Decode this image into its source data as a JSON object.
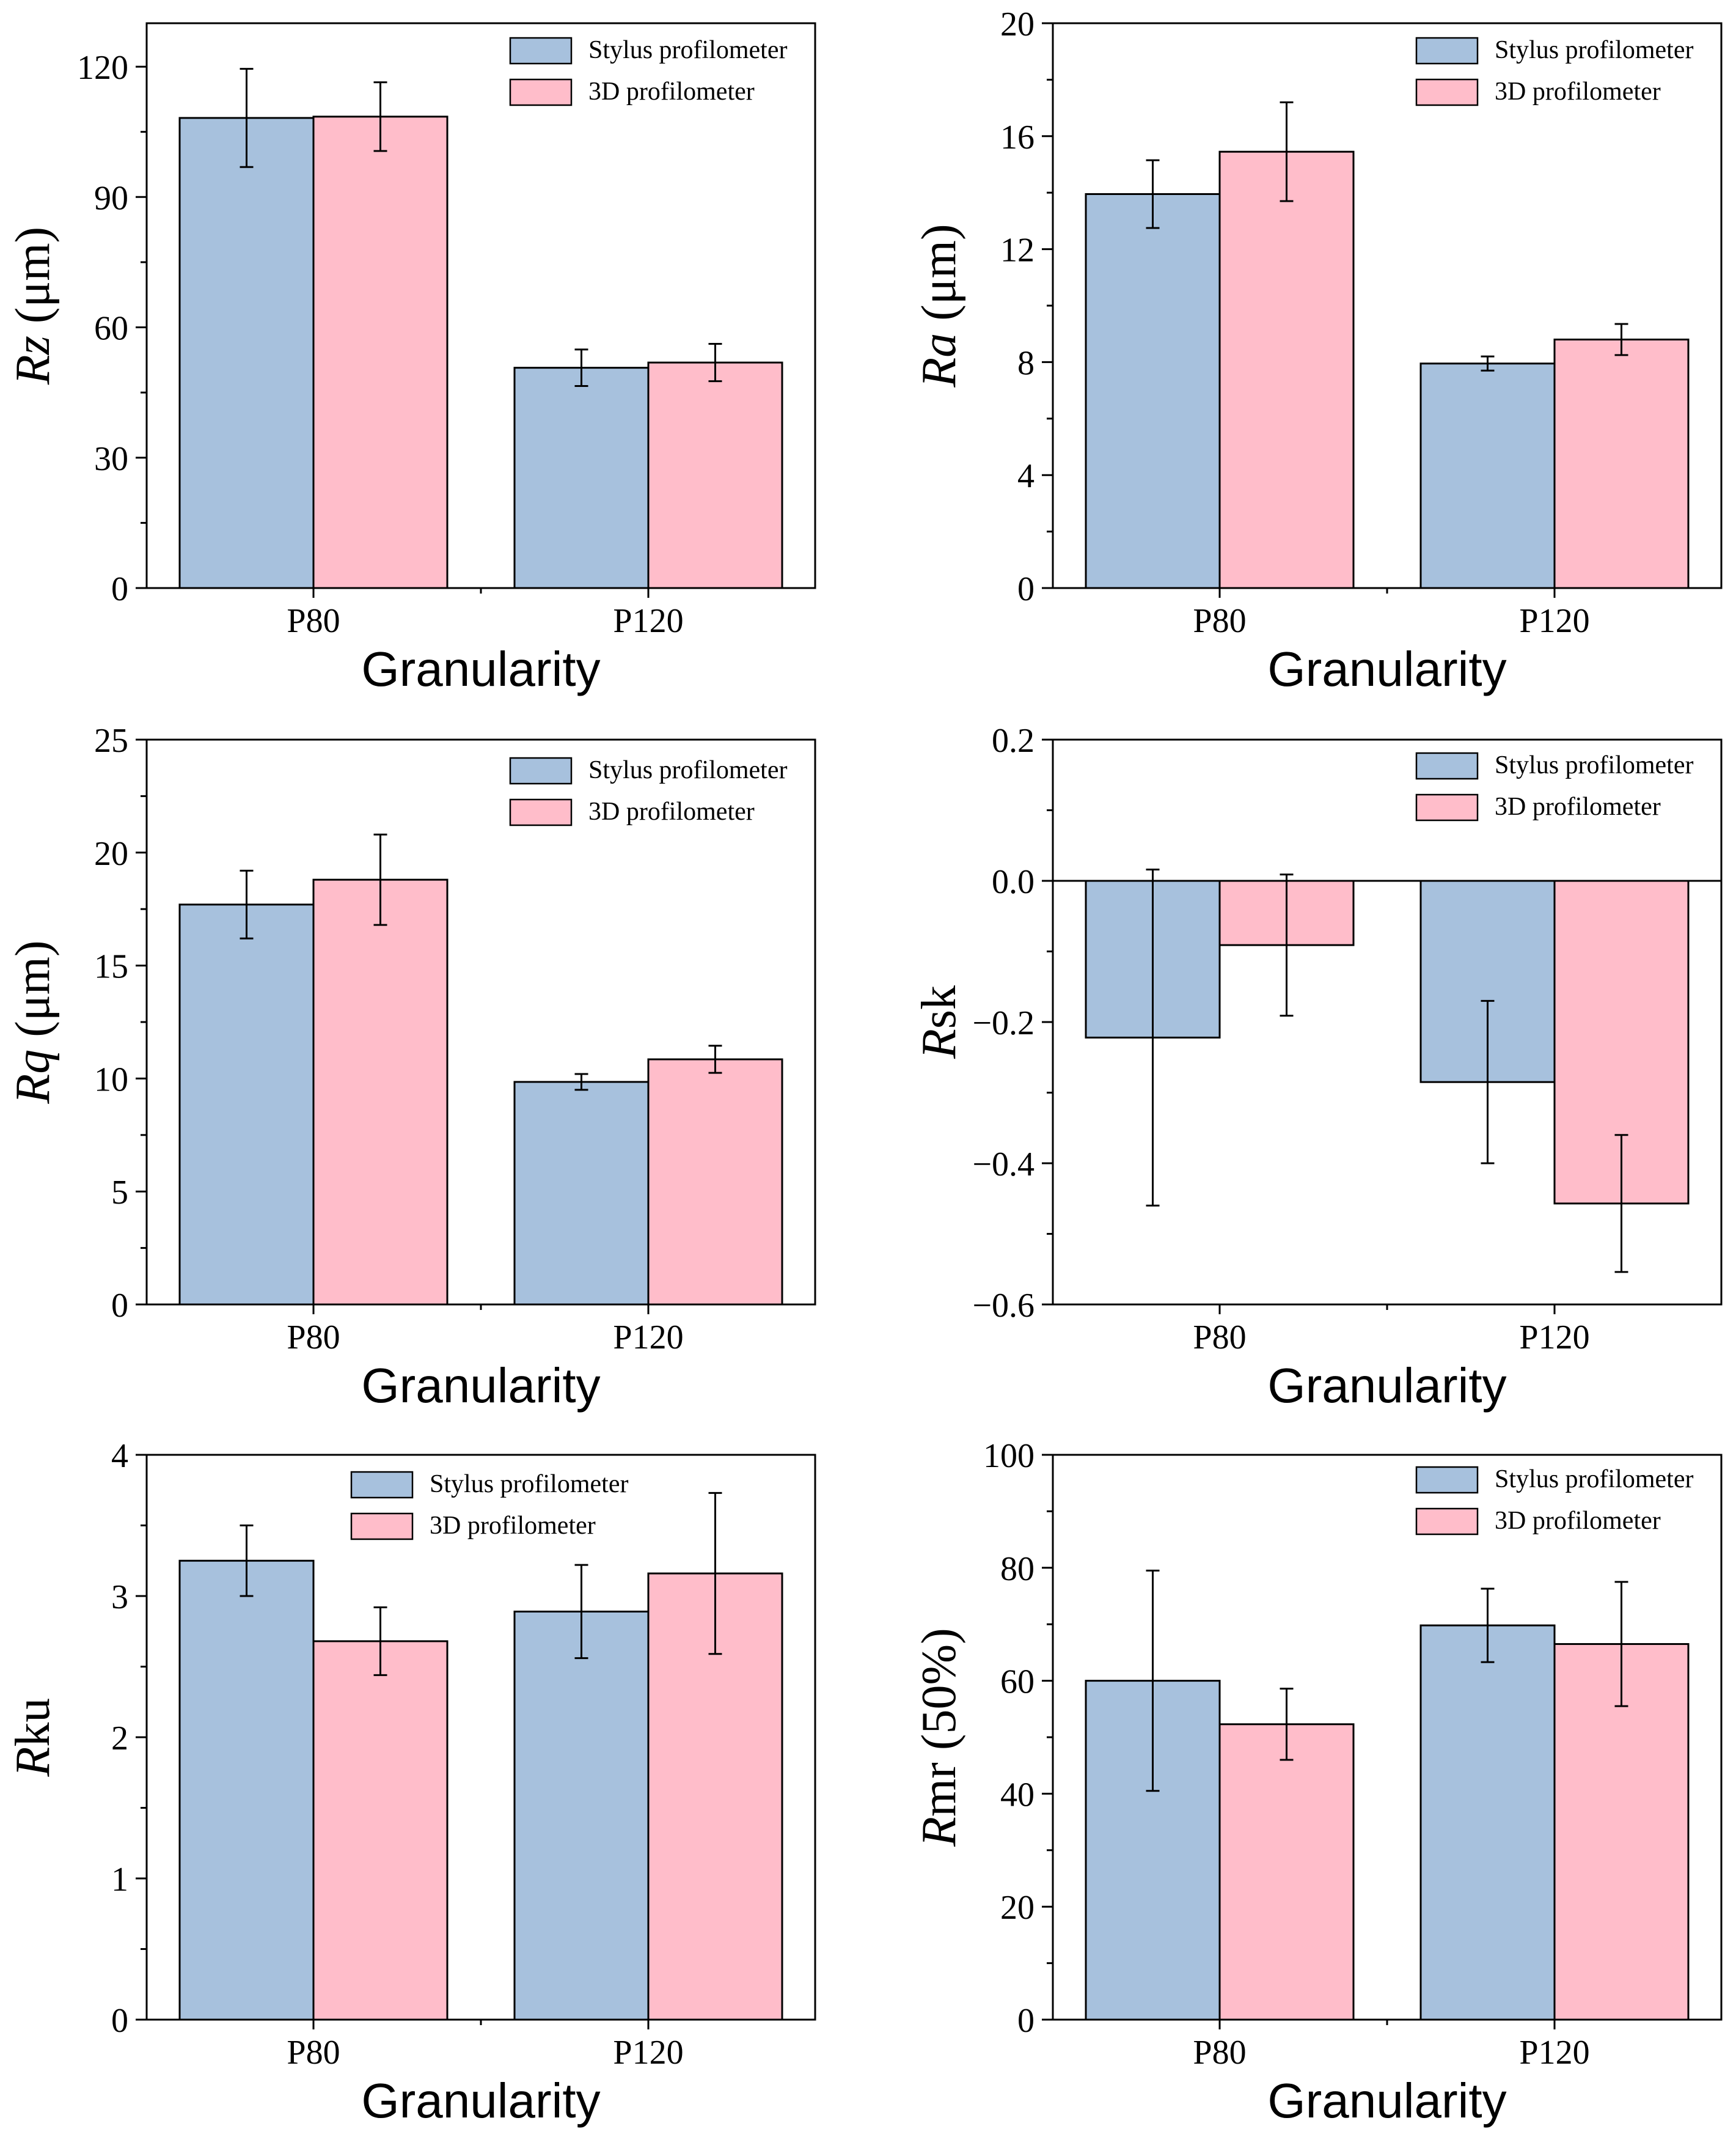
{
  "legend": {
    "series_a": "Stylus profilometer",
    "series_b": "3D profilometer"
  },
  "colors": {
    "series_a": "#a7c1dd",
    "series_b": "#ffbdca",
    "stroke": "#000000"
  },
  "chart_data": [
    {
      "id": "rz",
      "type": "bar",
      "ylabel_italic": "Rz",
      "ylabel_rest": " (μm)",
      "xlabel": "Granularity",
      "categories": [
        "P80",
        "P120"
      ],
      "ylim": [
        0,
        130
      ],
      "yticks": [
        0,
        30,
        60,
        90,
        120
      ],
      "yticklabels": [
        "0",
        "30",
        "60",
        "90",
        "120"
      ],
      "zero_line": false,
      "series": [
        {
          "name": "Stylus profilometer",
          "values": [
            108.2,
            50.7
          ],
          "err": [
            11.3,
            4.2
          ]
        },
        {
          "name": "3D profilometer",
          "values": [
            108.5,
            51.9
          ],
          "err": [
            7.9,
            4.3
          ]
        }
      ]
    },
    {
      "id": "ra",
      "type": "bar",
      "ylabel_italic": "Ra",
      "ylabel_rest": " (μm)",
      "xlabel": "Granularity",
      "categories": [
        "P80",
        "P120"
      ],
      "ylim": [
        0,
        20
      ],
      "yticks": [
        0,
        4,
        8,
        12,
        16,
        20
      ],
      "yticklabels": [
        "0",
        "4",
        "8",
        "12",
        "16",
        "20"
      ],
      "zero_line": false,
      "series": [
        {
          "name": "Stylus profilometer",
          "values": [
            13.95,
            7.95
          ],
          "err": [
            1.2,
            0.25
          ]
        },
        {
          "name": "3D profilometer",
          "values": [
            15.45,
            8.8
          ],
          "err": [
            1.75,
            0.55
          ]
        }
      ]
    },
    {
      "id": "rq",
      "type": "bar",
      "ylabel_italic": "Rq",
      "ylabel_rest": " (μm)",
      "xlabel": "Granularity",
      "categories": [
        "P80",
        "P120"
      ],
      "ylim": [
        0,
        25
      ],
      "yticks": [
        0,
        5,
        10,
        15,
        20,
        25
      ],
      "yticklabels": [
        "0",
        "5",
        "10",
        "15",
        "20",
        "25"
      ],
      "zero_line": false,
      "series": [
        {
          "name": "Stylus profilometer",
          "values": [
            17.7,
            9.85
          ],
          "err": [
            1.5,
            0.35
          ]
        },
        {
          "name": "3D profilometer",
          "values": [
            18.8,
            10.85
          ],
          "err": [
            2.0,
            0.6
          ]
        }
      ]
    },
    {
      "id": "rsk",
      "type": "bar",
      "ylabel_italic": "R",
      "ylabel_rest": "sk",
      "xlabel": "Granularity",
      "categories": [
        "P80",
        "P120"
      ],
      "ylim": [
        -0.6,
        0.2
      ],
      "yticks": [
        -0.6,
        -0.4,
        -0.2,
        0.0,
        0.2
      ],
      "yticklabels": [
        "−0.6",
        "−0.4",
        "−0.2",
        "0.0",
        "0.2"
      ],
      "zero_line": true,
      "series": [
        {
          "name": "Stylus profilometer",
          "values": [
            -0.222,
            -0.285
          ],
          "err": [
            0.238,
            0.115
          ]
        },
        {
          "name": "3D profilometer",
          "values": [
            -0.091,
            -0.457
          ],
          "err": [
            0.1,
            0.097
          ]
        }
      ]
    },
    {
      "id": "rku",
      "type": "bar",
      "ylabel_italic": "R",
      "ylabel_rest": "ku",
      "xlabel": "Granularity",
      "categories": [
        "P80",
        "P120"
      ],
      "ylim": [
        0,
        4
      ],
      "yticks": [
        0,
        1,
        2,
        3,
        4
      ],
      "yticklabels": [
        "0",
        "1",
        "2",
        "3",
        "4"
      ],
      "zero_line": false,
      "series": [
        {
          "name": "Stylus profilometer",
          "values": [
            3.25,
            2.89
          ],
          "err": [
            0.25,
            0.33
          ]
        },
        {
          "name": "3D profilometer",
          "values": [
            2.68,
            3.16
          ],
          "err": [
            0.24,
            0.57
          ]
        }
      ]
    },
    {
      "id": "rmr",
      "type": "bar",
      "ylabel_italic": "R",
      "ylabel_rest": "mr (50%)",
      "xlabel": "Granularity",
      "categories": [
        "P80",
        "P120"
      ],
      "ylim": [
        0,
        100
      ],
      "yticks": [
        0,
        20,
        40,
        60,
        80,
        100
      ],
      "yticklabels": [
        "0",
        "20",
        "40",
        "60",
        "80",
        "100"
      ],
      "zero_line": false,
      "series": [
        {
          "name": "Stylus profilometer",
          "values": [
            60.0,
            69.8
          ],
          "err": [
            19.5,
            6.5
          ]
        },
        {
          "name": "3D profilometer",
          "values": [
            52.3,
            66.5
          ],
          "err": [
            6.3,
            11.0
          ]
        }
      ]
    }
  ]
}
